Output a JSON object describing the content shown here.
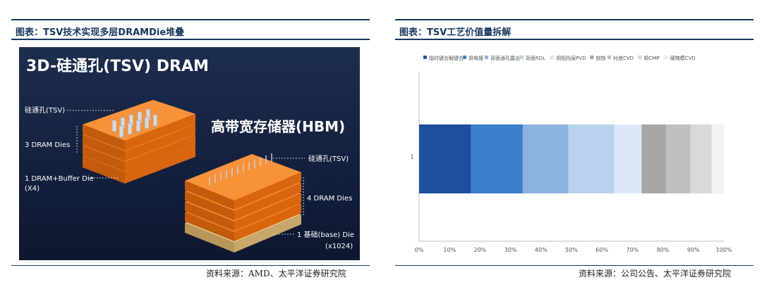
{
  "left_panel": {
    "title": "图表：TSV技术实现多层DRAMDie堆叠",
    "source": "资料来源：AMD、太平洋证券研究院",
    "illustration": {
      "heading": "3D-硅通孔(TSV) DRAM",
      "hbm_title": "高带宽存储器(HBM)",
      "label_tsv_left": "硅通孔(TSV)",
      "label_3dram": "3 DRAM Dies",
      "label_buffer_1": "1 DRAM+Buffer Die",
      "label_buffer_2": "(X4)",
      "label_tsv_right": "硅通孔(TSV)",
      "label_4dram": "4 DRAM Dies",
      "label_base": "1 基础(base) Die",
      "label_x1024": "(x1024)"
    }
  },
  "right_panel": {
    "title": "图表：TSV工艺价值量拆解",
    "source": "资料来源：公司公告、太平洋证券研究院"
  },
  "chart_data": {
    "type": "bar",
    "orientation": "horizontal",
    "stacked": true,
    "categories": [
      "1"
    ],
    "series": [
      {
        "name": "临时键合解键合",
        "values": [
          0.17
        ],
        "color": "#1f4e9c"
      },
      {
        "name": "铜电镀",
        "values": [
          0.17
        ],
        "color": "#3a7fc9"
      },
      {
        "name": "背面通孔露出",
        "values": [
          0.15
        ],
        "color": "#8cb3e0"
      },
      {
        "name": "背面RDL",
        "values": [
          0.15
        ],
        "color": "#b9d3ee"
      },
      {
        "name": "铜阻挡层PVD",
        "values": [
          0.09
        ],
        "color": "#dbe8f6"
      },
      {
        "name": "刻蚀",
        "values": [
          0.08
        ],
        "color": "#a6a6a6"
      },
      {
        "name": "衬底CVD",
        "values": [
          0.08
        ],
        "color": "#bfbfbf"
      },
      {
        "name": "铜CMP",
        "values": [
          0.07
        ],
        "color": "#d9d9d9"
      },
      {
        "name": "硬掩模CVD",
        "values": [
          0.04
        ],
        "color": "#f2f2f2"
      }
    ],
    "xlim": [
      0,
      1
    ],
    "xticks": [
      "0%",
      "10%",
      "20%",
      "30%",
      "40%",
      "50%",
      "60%",
      "70%",
      "80%",
      "90%",
      "100%"
    ],
    "legend_position": "top",
    "grid": false
  }
}
